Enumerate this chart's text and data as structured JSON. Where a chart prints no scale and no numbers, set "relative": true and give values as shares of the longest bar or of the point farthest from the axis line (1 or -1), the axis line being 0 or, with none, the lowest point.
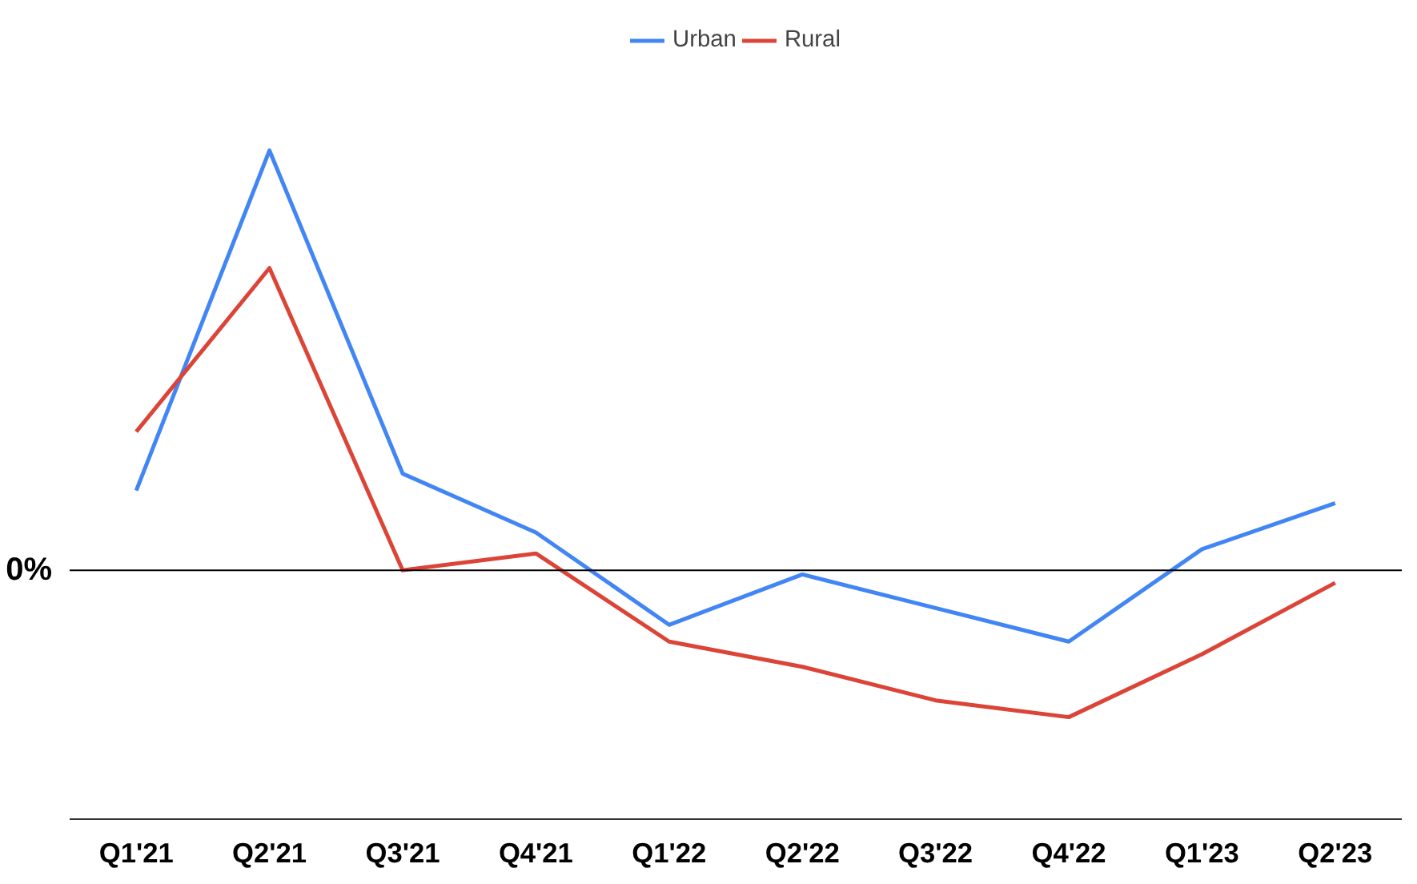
{
  "chart_data": {
    "type": "line",
    "relative": true,
    "categories": [
      "Q1'21",
      "Q2'21",
      "Q3'21",
      "Q4'21",
      "Q1'22",
      "Q2'22",
      "Q3'22",
      "Q4'22",
      "Q1'23",
      "Q2'23"
    ],
    "series": [
      {
        "name": "Urban",
        "color": "#4285f4",
        "values": [
          0.19,
          1.0,
          0.23,
          0.09,
          -0.13,
          -0.01,
          -0.09,
          -0.17,
          0.05,
          0.16
        ]
      },
      {
        "name": "Rural",
        "color": "#db4437",
        "values": [
          0.33,
          0.72,
          0.0,
          0.04,
          -0.17,
          -0.23,
          -0.31,
          -0.35,
          -0.2,
          -0.03
        ]
      }
    ],
    "ref_lines": [
      {
        "axis": "y",
        "value": 0,
        "label": "0%",
        "color": "#000000"
      }
    ],
    "legend": "top"
  }
}
